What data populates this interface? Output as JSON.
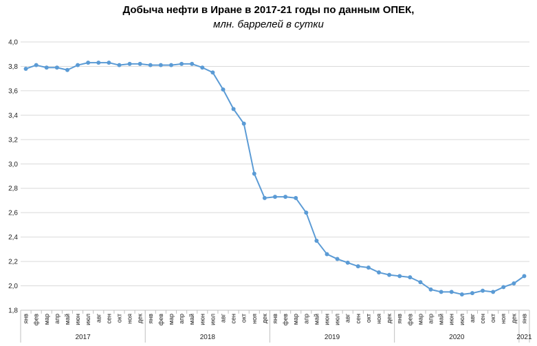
{
  "chart_data": {
    "type": "line",
    "title": "Добыча  нефти в Иране в 2017-21 годы по данным  ОПЕК,",
    "subtitle": "млн. баррелей в сутки",
    "xlabel": "",
    "ylabel": "",
    "ylim": [
      1.8,
      4.0
    ],
    "yticks": [
      "1,8",
      "2,0",
      "2,2",
      "2,4",
      "2,6",
      "2,8",
      "3,0",
      "3,2",
      "3,4",
      "3,6",
      "3,8",
      "4,0"
    ],
    "grid": true,
    "legend": "none",
    "line_color": "#5b9bd5",
    "months": [
      "янв",
      "фев",
      "мар",
      "апр",
      "май",
      "июн",
      "июл",
      "авг",
      "сен",
      "окт",
      "ноя",
      "дек"
    ],
    "years": [
      "2017",
      "2018",
      "2019",
      "2020",
      "2021"
    ],
    "categories": [
      "янв 2017",
      "фев 2017",
      "мар 2017",
      "апр 2017",
      "май 2017",
      "июн 2017",
      "июл 2017",
      "авг 2017",
      "сен 2017",
      "окт 2017",
      "ноя 2017",
      "дек 2017",
      "янв 2018",
      "фев 2018",
      "мар 2018",
      "апр 2018",
      "май 2018",
      "июн 2018",
      "июл 2018",
      "авг 2018",
      "сен 2018",
      "окт 2018",
      "ноя 2018",
      "дек 2018",
      "янв 2019",
      "фев 2019",
      "мар 2019",
      "апр 2019",
      "май 2019",
      "июн 2019",
      "июл 2019",
      "авг 2019",
      "сен 2019",
      "окт 2019",
      "ноя 2019",
      "дек 2019",
      "янв 2020",
      "фев 2020",
      "мар 2020",
      "апр 2020",
      "май 2020",
      "июн 2020",
      "июл 2020",
      "авг 2020",
      "сен 2020",
      "окт 2020",
      "ноя 2020",
      "дек 2020",
      "янв 2021"
    ],
    "values": [
      3.78,
      3.81,
      3.79,
      3.79,
      3.77,
      3.81,
      3.83,
      3.83,
      3.83,
      3.81,
      3.82,
      3.82,
      3.81,
      3.81,
      3.81,
      3.82,
      3.82,
      3.79,
      3.75,
      3.61,
      3.45,
      3.33,
      2.92,
      2.72,
      2.73,
      2.73,
      2.72,
      2.6,
      2.37,
      2.26,
      2.22,
      2.19,
      2.16,
      2.15,
      2.11,
      2.09,
      2.08,
      2.07,
      2.03,
      1.97,
      1.95,
      1.95,
      1.93,
      1.94,
      1.96,
      1.95,
      1.99,
      2.02,
      2.08
    ]
  }
}
